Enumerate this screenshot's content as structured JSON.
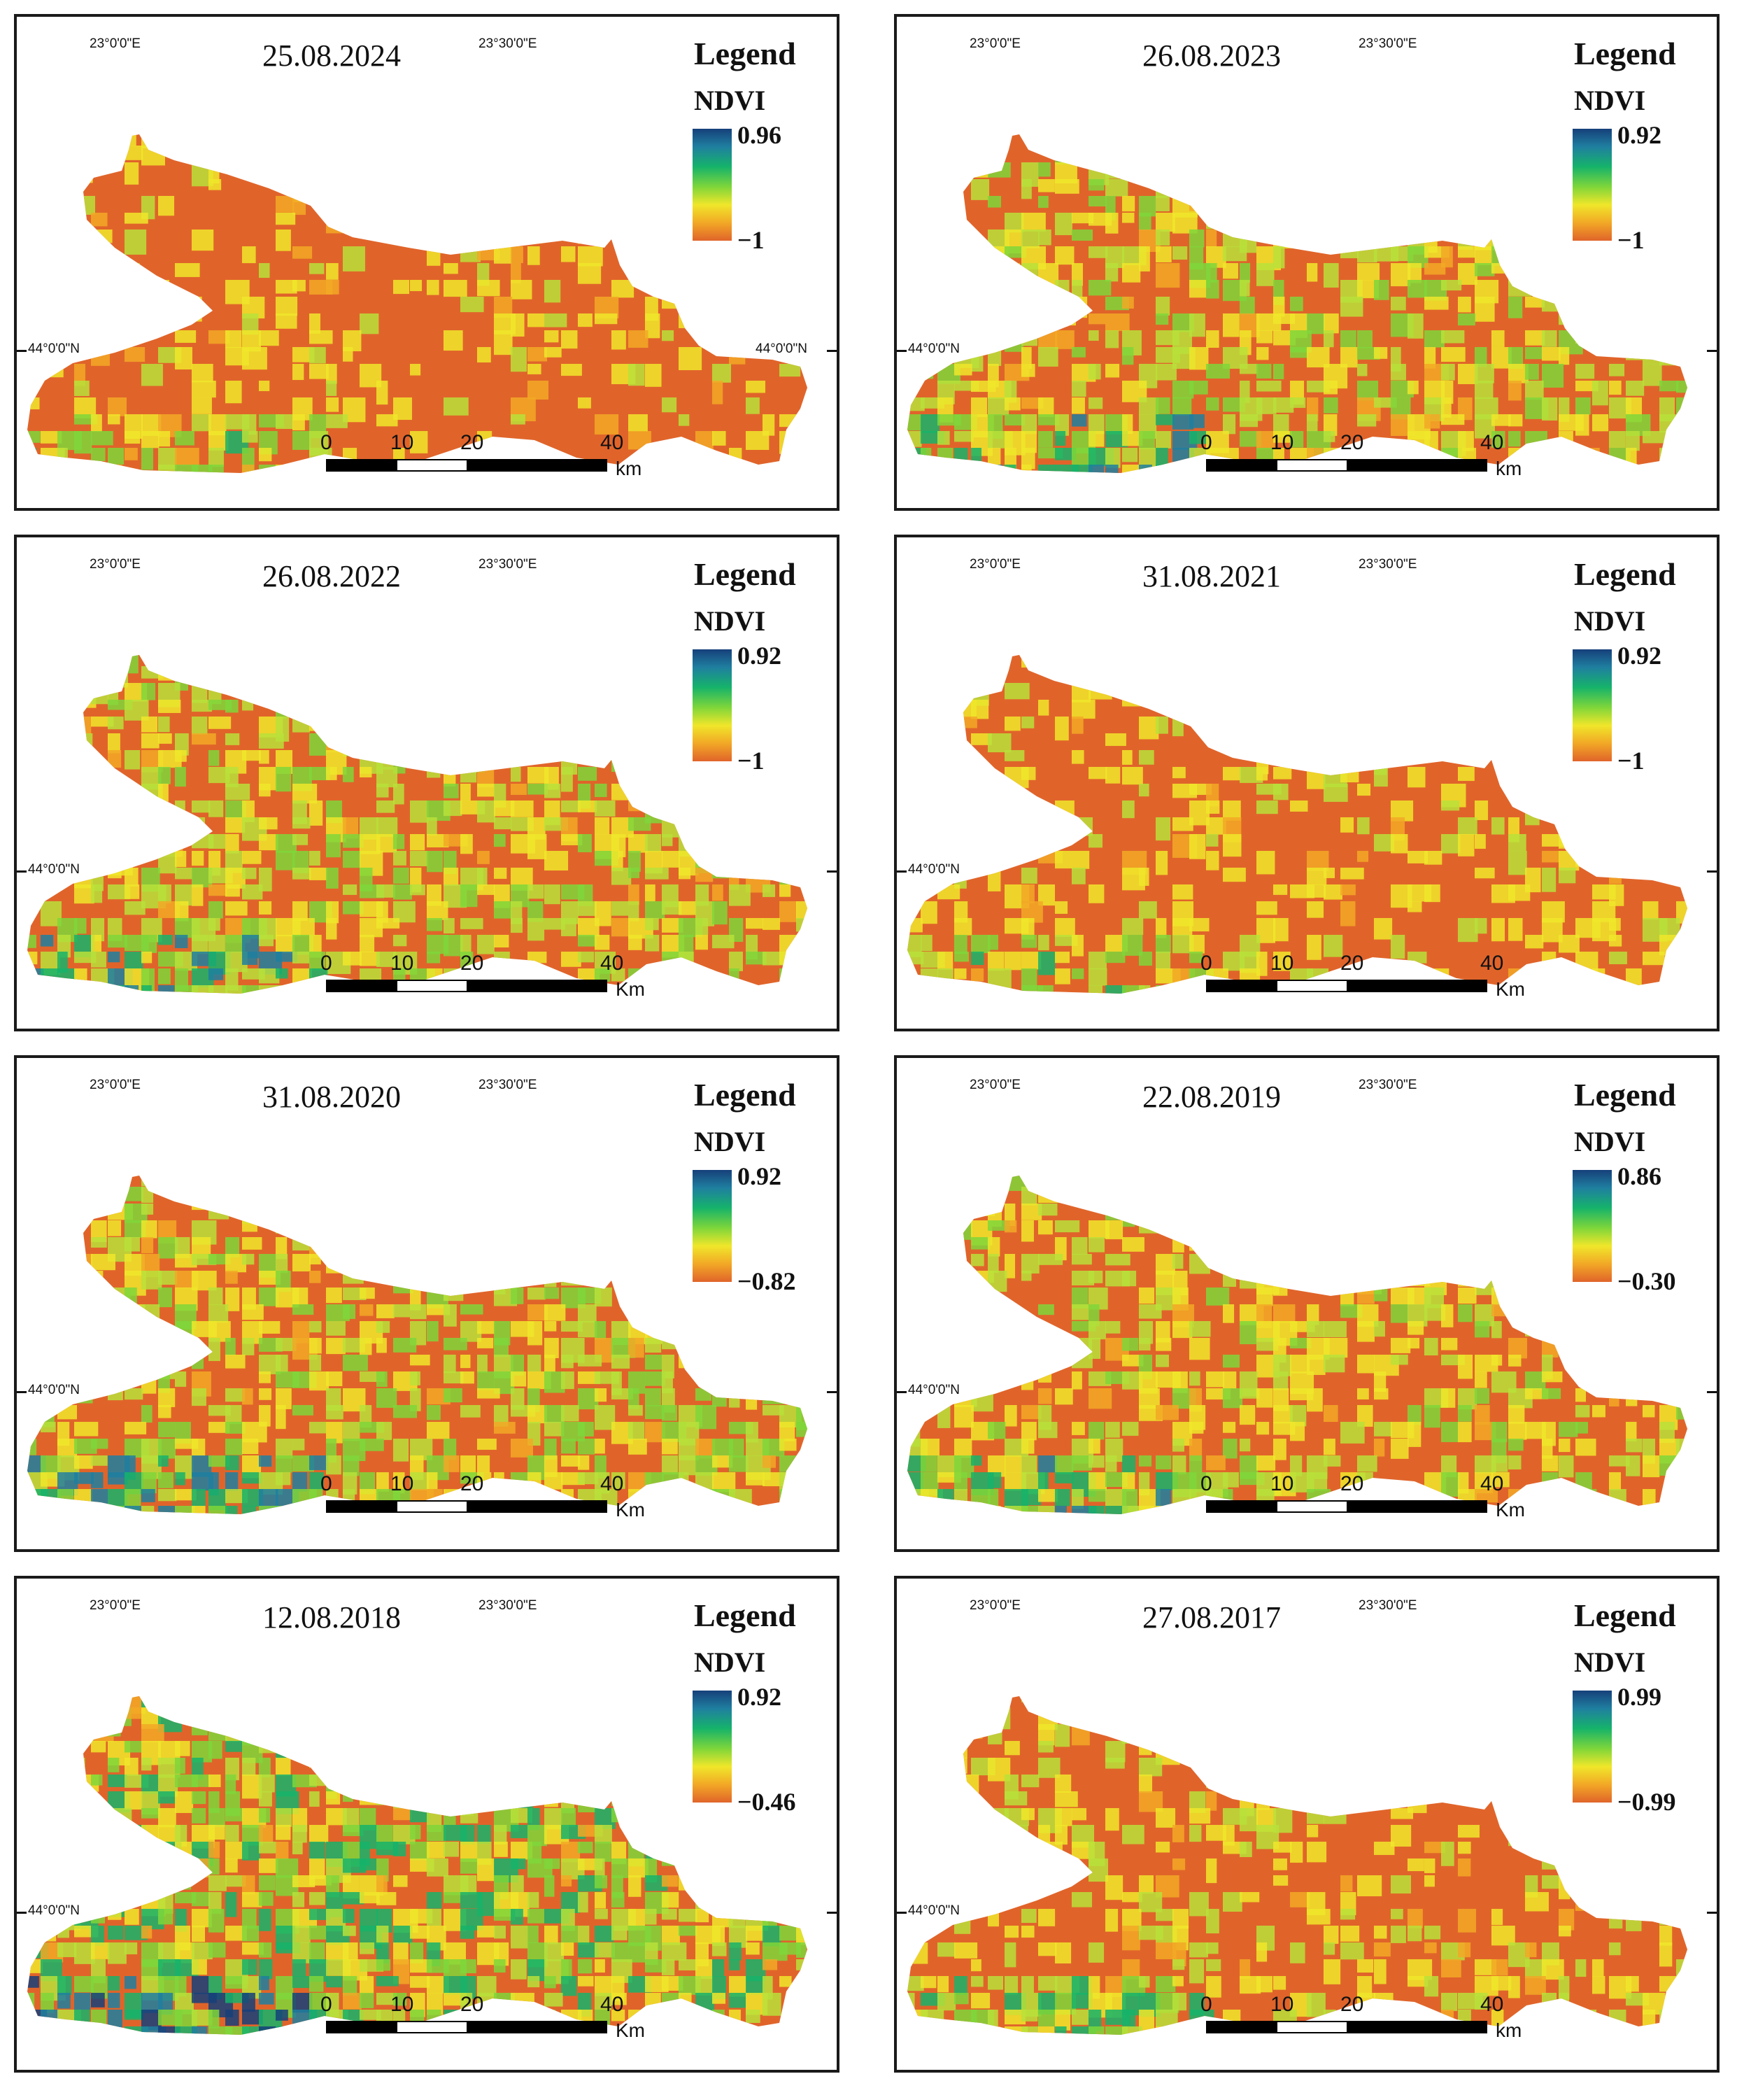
{
  "figure": {
    "legend_title": "Legend",
    "index_label": "NDVI",
    "colors": {
      "high": "#16407a",
      "mid": "#7fd63a",
      "low": "#e0642a"
    },
    "panels": [
      {
        "date": "25.08.2024",
        "max": "0.96",
        "min": "−1",
        "lon1": "23°0'0\"E",
        "lon2": "23°30'0\"E",
        "lat1": "44°0'0\"N",
        "lat2": "44°0'0\"N",
        "unit": "km",
        "bias": 0.12
      },
      {
        "date": "26.08.2023",
        "max": "0.92",
        "min": "−1",
        "lon1": "23°0'0\"E",
        "lon2": "23°30'0\"E",
        "lat1": "44°0'0\"N",
        "lat2": "",
        "unit": "km",
        "bias": 0.36
      },
      {
        "date": "26.08.2022",
        "max": "0.92",
        "min": "−1",
        "lon1": "23°0'0\"E",
        "lon2": "23°30'0\"E",
        "lat1": "44°0'0\"N",
        "lat2": "",
        "unit": "Km",
        "bias": 0.38
      },
      {
        "date": "31.08.2021",
        "max": "0.92",
        "min": "−1",
        "lon1": "23°0'0\"E",
        "lon2": "23°30'0\"E",
        "lat1": "44°0'0\"N",
        "lat2": "",
        "unit": "Km",
        "bias": 0.14
      },
      {
        "date": "31.08.2020",
        "max": "0.92",
        "min": "−0.82",
        "lon1": "23°0'0\"E",
        "lon2": "23°30'0\"E",
        "lat1": "44°0'0\"N",
        "lat2": "",
        "unit": "Km",
        "bias": 0.42
      },
      {
        "date": "22.08.2019",
        "max": "0.86",
        "min": "−0.30",
        "lon1": "23°0'0\"E",
        "lon2": "23°30'0\"E",
        "lat1": "44°0'0\"N",
        "lat2": "",
        "unit": "Km",
        "bias": 0.32
      },
      {
        "date": "12.08.2018",
        "max": "0.92",
        "min": "−0.46",
        "lon1": "23°0'0\"E",
        "lon2": "23°30'0\"E",
        "lat1": "44°0'0\"N",
        "lat2": "",
        "unit": "Km",
        "bias": 0.55
      },
      {
        "date": "27.08.2017",
        "max": "0.99",
        "min": "−0.99",
        "lon1": "23°0'0\"E",
        "lon2": "23°30'0\"E",
        "lat1": "44°0'0\"N",
        "lat2": "",
        "unit": "km",
        "bias": 0.2
      }
    ],
    "scale_labels": [
      "0",
      "10",
      "20",
      "40"
    ]
  }
}
